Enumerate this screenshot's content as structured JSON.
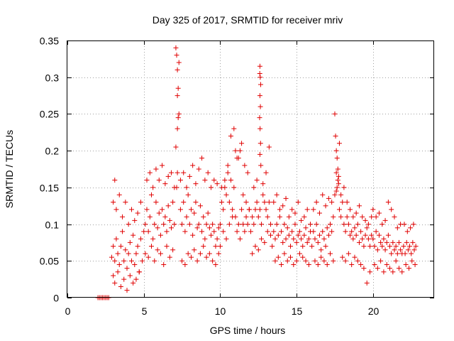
{
  "chart_data": {
    "type": "scatter",
    "title": "Day 325 of 2017, SRMTID for receiver mriv",
    "xlabel": "GPS time / hours",
    "ylabel": "SRMTID / TECUs",
    "xlim": [
      0,
      24
    ],
    "ylim": [
      0,
      0.35
    ],
    "xticks": [
      0,
      5,
      10,
      15,
      20
    ],
    "xtick_labels": [
      "0",
      "5",
      "10",
      "15",
      "20"
    ],
    "yticks": [
      0,
      0.05,
      0.1,
      0.15,
      0.2,
      0.25,
      0.3,
      0.35
    ],
    "ytick_labels": [
      "0",
      "0.05",
      "0.1",
      "0.15",
      "0.2",
      "0.25",
      "0.3",
      "0.35"
    ],
    "grid": true,
    "marker": "+",
    "color": "#e00000",
    "series": [
      {
        "name": "SRMTID",
        "x": [
          2.0,
          2.1,
          2.2,
          2.3,
          2.4,
          2.5,
          2.6,
          2.7,
          2.9,
          3.0,
          3.1,
          3.2,
          3.3,
          3.4,
          3.5,
          3.6,
          3.7,
          3.8,
          3.9,
          4.0,
          4.1,
          4.2,
          4.3,
          4.4,
          4.5,
          4.6,
          4.7,
          4.8,
          4.9,
          5.0,
          3.0,
          3.1,
          3.2,
          3.4,
          3.6,
          3.8,
          4.0,
          4.2,
          4.4,
          4.6,
          4.8,
          3.0,
          3.1,
          3.3,
          3.5,
          3.7,
          3.9,
          4.1,
          4.3,
          4.5,
          4.7,
          5.1,
          5.2,
          5.3,
          5.4,
          5.5,
          5.6,
          5.7,
          5.8,
          5.9,
          6.0,
          6.1,
          6.2,
          6.3,
          6.4,
          6.5,
          6.6,
          6.7,
          6.8,
          6.9,
          7.0,
          5.2,
          5.4,
          5.6,
          5.8,
          6.0,
          6.2,
          6.4,
          6.6,
          6.8,
          7.0,
          5.1,
          5.3,
          5.5,
          5.7,
          5.9,
          6.1,
          6.3,
          6.5,
          6.7,
          6.9,
          7.1,
          7.15,
          7.2,
          7.25,
          7.3,
          7.2,
          7.1,
          7.3,
          7.2,
          7.25,
          7.2,
          7.15,
          7.4,
          7.5,
          7.6,
          7.7,
          7.8,
          7.9,
          8.0,
          8.1,
          8.2,
          8.3,
          8.4,
          8.5,
          8.6,
          8.7,
          8.8,
          8.9,
          9.0,
          9.1,
          9.2,
          9.3,
          9.4,
          9.5,
          9.6,
          9.7,
          9.8,
          9.9,
          7.5,
          7.7,
          7.9,
          8.1,
          8.3,
          8.5,
          8.7,
          8.9,
          9.1,
          9.3,
          9.5,
          9.7,
          9.9,
          7.4,
          7.6,
          7.8,
          8.0,
          8.2,
          8.4,
          8.6,
          8.8,
          9.0,
          9.2,
          9.4,
          9.6,
          9.8,
          10.0,
          10.1,
          10.2,
          10.3,
          10.4,
          10.5,
          10.6,
          10.7,
          10.8,
          10.9,
          11.0,
          11.1,
          11.2,
          11.3,
          11.4,
          11.5,
          11.6,
          11.7,
          11.8,
          11.9,
          10.0,
          10.2,
          10.4,
          10.6,
          10.8,
          11.0,
          11.2,
          11.4,
          11.6,
          11.8,
          10.1,
          10.3,
          10.5,
          10.7,
          10.9,
          11.1,
          11.3,
          11.5,
          11.7,
          11.9,
          12.0,
          12.1,
          12.2,
          12.3,
          12.4,
          12.5,
          12.6,
          12.7,
          12.8,
          12.9,
          13.0,
          13.1,
          13.2,
          13.3,
          12.6,
          12.62,
          12.65,
          12.6,
          12.63,
          12.58,
          12.61,
          12.64,
          12.6,
          12.66,
          12.59,
          12.1,
          12.3,
          12.5,
          12.7,
          12.9,
          13.1,
          13.3,
          12.2,
          12.4,
          12.8,
          13.0,
          13.2,
          13.4,
          13.5,
          13.6,
          13.7,
          13.8,
          13.9,
          14.0,
          14.1,
          14.2,
          14.3,
          14.4,
          14.5,
          14.6,
          14.7,
          14.8,
          14.9,
          15.0,
          15.1,
          15.2,
          15.3,
          15.4,
          15.5,
          15.6,
          15.7,
          15.8,
          15.9,
          13.5,
          13.7,
          13.9,
          14.1,
          14.3,
          14.5,
          14.7,
          14.9,
          15.1,
          15.3,
          15.5,
          15.7,
          15.9,
          13.6,
          13.8,
          14.0,
          14.2,
          14.4,
          14.6,
          14.8,
          15.0,
          15.2,
          15.4,
          15.6,
          15.8,
          16.0,
          16.1,
          16.2,
          16.3,
          16.4,
          16.5,
          16.6,
          16.7,
          16.8,
          16.9,
          17.0,
          17.1,
          17.2,
          17.3,
          17.4,
          16.1,
          16.3,
          16.5,
          16.7,
          16.9,
          17.1,
          17.3,
          16.2,
          16.4,
          16.6,
          16.8,
          17.0,
          17.2,
          17.4,
          17.5,
          17.55,
          17.6,
          17.65,
          17.7,
          17.75,
          17.8,
          17.7,
          17.6,
          17.65,
          17.75,
          17.5,
          17.6,
          17.8,
          17.9,
          18.0,
          18.1,
          18.2,
          18.3,
          18.4,
          18.5,
          18.6,
          18.7,
          18.8,
          18.9,
          19.0,
          19.1,
          19.2,
          19.3,
          19.4,
          19.5,
          19.6,
          19.7,
          19.8,
          19.9,
          17.9,
          18.1,
          18.3,
          18.5,
          18.7,
          18.9,
          19.1,
          19.3,
          19.5,
          19.7,
          19.9,
          18.0,
          18.2,
          18.4,
          18.6,
          18.8,
          19.0,
          19.2,
          19.4,
          19.6,
          19.8,
          20.0,
          20.1,
          20.2,
          20.3,
          20.4,
          20.5,
          20.6,
          20.7,
          20.8,
          20.9,
          21.0,
          21.1,
          21.2,
          21.3,
          21.4,
          21.5,
          21.6,
          21.7,
          21.8,
          21.9,
          20.0,
          20.2,
          20.4,
          20.6,
          20.8,
          21.0,
          21.2,
          21.4,
          21.6,
          21.8,
          20.1,
          20.3,
          20.5,
          20.7,
          20.9,
          21.1,
          21.3,
          21.5,
          21.7,
          21.9,
          22.0,
          22.1,
          22.2,
          22.3,
          22.4,
          22.5,
          22.6,
          22.7,
          22.8,
          22.05,
          22.25,
          22.45,
          22.65,
          22.15,
          22.35,
          22.55,
          22.75
        ],
        "y": [
          0,
          0,
          0,
          0,
          0,
          0,
          0,
          0,
          0.055,
          0.07,
          0.05,
          0.08,
          0.06,
          0.045,
          0.07,
          0.09,
          0.05,
          0.065,
          0.04,
          0.06,
          0.075,
          0.05,
          0.085,
          0.045,
          0.06,
          0.07,
          0.035,
          0.08,
          0.05,
          0.09,
          0.13,
          0.16,
          0.12,
          0.14,
          0.11,
          0.13,
          0.1,
          0.12,
          0.105,
          0.115,
          0.13,
          0.03,
          0.02,
          0.035,
          0.015,
          0.025,
          0.01,
          0.03,
          0.02,
          0.025,
          0.035,
          0.1,
          0.12,
          0.09,
          0.11,
          0.14,
          0.08,
          0.1,
          0.13,
          0.095,
          0.115,
          0.085,
          0.12,
          0.1,
          0.11,
          0.09,
          0.125,
          0.105,
          0.095,
          0.13,
          0.1,
          0.16,
          0.17,
          0.15,
          0.175,
          0.16,
          0.18,
          0.155,
          0.165,
          0.17,
          0.15,
          0.06,
          0.055,
          0.07,
          0.05,
          0.065,
          0.06,
          0.045,
          0.07,
          0.055,
          0.065,
          0.34,
          0.33,
          0.31,
          0.285,
          0.25,
          0.23,
          0.205,
          0.32,
          0.275,
          0.245,
          0.17,
          0.15,
          0.12,
          0.1,
          0.13,
          0.09,
          0.11,
          0.14,
          0.1,
          0.12,
          0.085,
          0.115,
          0.13,
          0.095,
          0.1,
          0.125,
          0.09,
          0.11,
          0.08,
          0.1,
          0.115,
          0.095,
          0.085,
          0.1,
          0.09,
          0.07,
          0.08,
          0.095,
          0.05,
          0.045,
          0.06,
          0.055,
          0.065,
          0.05,
          0.06,
          0.07,
          0.055,
          0.06,
          0.05,
          0.045,
          0.06,
          0.16,
          0.17,
          0.15,
          0.165,
          0.18,
          0.155,
          0.175,
          0.19,
          0.16,
          0.17,
          0.15,
          0.16,
          0.155,
          0.1,
          0.13,
          0.12,
          0.15,
          0.14,
          0.17,
          0.13,
          0.16,
          0.12,
          0.15,
          0.11,
          0.09,
          0.1,
          0.08,
          0.12,
          0.1,
          0.09,
          0.11,
          0.1,
          0.12,
          0.07,
          0.09,
          0.08,
          0.1,
          0.11,
          0.2,
          0.19,
          0.21,
          0.18,
          0.17,
          0.15,
          0.16,
          0.18,
          0.22,
          0.23,
          0.19,
          0.2,
          0.14,
          0.13,
          0.12,
          0.09,
          0.11,
          0.1,
          0.12,
          0.13,
          0.11,
          0.12,
          0.1,
          0.14,
          0.13,
          0.12,
          0.11,
          0.13,
          0.1,
          0.315,
          0.3,
          0.29,
          0.275,
          0.26,
          0.245,
          0.23,
          0.21,
          0.195,
          0.18,
          0.305,
          0.06,
          0.07,
          0.065,
          0.08,
          0.075,
          0.09,
          0.085,
          0.15,
          0.16,
          0.155,
          0.17,
          0.205,
          0.07,
          0.09,
          0.08,
          0.1,
          0.085,
          0.11,
          0.09,
          0.075,
          0.1,
          0.08,
          0.095,
          0.085,
          0.07,
          0.09,
          0.08,
          0.1,
          0.075,
          0.085,
          0.09,
          0.08,
          0.07,
          0.085,
          0.095,
          0.075,
          0.08,
          0.09,
          0.13,
          0.14,
          0.12,
          0.125,
          0.135,
          0.11,
          0.12,
          0.115,
          0.13,
          0.105,
          0.11,
          0.12,
          0.1,
          0.05,
          0.055,
          0.045,
          0.06,
          0.05,
          0.055,
          0.045,
          0.05,
          0.06,
          0.055,
          0.05,
          0.045,
          0.07,
          0.09,
          0.08,
          0.1,
          0.075,
          0.085,
          0.065,
          0.09,
          0.08,
          0.07,
          0.095,
          0.085,
          0.1,
          0.09,
          0.11,
          0.12,
          0.13,
          0.115,
          0.14,
          0.125,
          0.135,
          0.13,
          0.05,
          0.045,
          0.055,
          0.05,
          0.045,
          0.06,
          0.05,
          0.25,
          0.22,
          0.2,
          0.19,
          0.175,
          0.165,
          0.21,
          0.16,
          0.17,
          0.15,
          0.155,
          0.14,
          0.145,
          0.12,
          0.11,
          0.13,
          0.1,
          0.09,
          0.11,
          0.1,
          0.085,
          0.09,
          0.08,
          0.095,
          0.085,
          0.1,
          0.075,
          0.09,
          0.08,
          0.07,
          0.085,
          0.095,
          0.08,
          0.07,
          0.085,
          0.14,
          0.15,
          0.13,
          0.12,
          0.11,
          0.115,
          0.125,
          0.11,
          0.105,
          0.1,
          0.11,
          0.055,
          0.05,
          0.06,
          0.045,
          0.055,
          0.05,
          0.045,
          0.04,
          0.02,
          0.035,
          0.08,
          0.07,
          0.09,
          0.065,
          0.085,
          0.075,
          0.07,
          0.08,
          0.065,
          0.075,
          0.085,
          0.07,
          0.06,
          0.075,
          0.065,
          0.07,
          0.06,
          0.075,
          0.065,
          0.06,
          0.12,
          0.11,
          0.115,
          0.1,
          0.105,
          0.13,
          0.12,
          0.11,
          0.095,
          0.1,
          0.045,
          0.04,
          0.05,
          0.035,
          0.045,
          0.04,
          0.035,
          0.05,
          0.04,
          0.035,
          0.07,
          0.06,
          0.075,
          0.065,
          0.07,
          0.06,
          0.075,
          0.065,
          0.07,
          0.1,
          0.09,
          0.095,
          0.1,
          0.045,
          0.04,
          0.05,
          0.045
        ]
      }
    ]
  }
}
